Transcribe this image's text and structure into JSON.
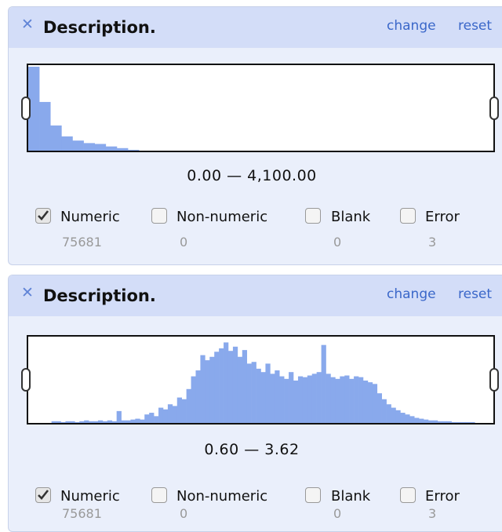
{
  "facets": [
    {
      "title": "Description.",
      "links": [
        "change",
        "reset"
      ],
      "range": "0.00 — 4,100.00",
      "histogram": [
        100,
        58,
        30,
        17,
        12,
        9,
        8,
        5,
        3,
        1,
        0,
        0,
        0,
        0,
        0,
        0,
        0,
        0,
        0,
        0,
        0,
        0,
        0,
        0,
        0,
        0,
        0,
        0,
        0,
        0,
        0,
        0,
        0,
        0,
        0,
        0,
        0,
        0,
        0,
        0,
        0,
        0
      ],
      "choices": [
        {
          "label": "Numeric",
          "count": 75681,
          "checked": true
        },
        {
          "label": "Non-numeric",
          "count": 0,
          "checked": false
        },
        {
          "label": "Blank",
          "count": 0,
          "checked": false
        },
        {
          "label": "Error",
          "count": 3,
          "checked": false
        }
      ]
    },
    {
      "title": "Description.",
      "links": [
        "change",
        "reset"
      ],
      "range": "0.60 — 3.62",
      "histogram": [
        0,
        0,
        0,
        0,
        0,
        2,
        2,
        1,
        2,
        2,
        1,
        2,
        3,
        2,
        2,
        3,
        2,
        3,
        2,
        14,
        3,
        3,
        4,
        5,
        4,
        10,
        12,
        8,
        18,
        16,
        22,
        20,
        30,
        28,
        40,
        55,
        62,
        80,
        74,
        78,
        84,
        88,
        95,
        85,
        90,
        78,
        86,
        70,
        72,
        64,
        60,
        70,
        58,
        62,
        55,
        52,
        60,
        50,
        55,
        54,
        56,
        58,
        60,
        92,
        58,
        54,
        52,
        55,
        56,
        52,
        55,
        54,
        50,
        48,
        46,
        35,
        28,
        22,
        18,
        15,
        12,
        10,
        8,
        6,
        5,
        4,
        3,
        3,
        2,
        2,
        2,
        1,
        1,
        1,
        1,
        1,
        0,
        0,
        0,
        0
      ],
      "choices": [
        {
          "label": "Numeric",
          "count": 75681,
          "checked": true
        },
        {
          "label": "Non-numeric",
          "count": 0,
          "checked": false
        },
        {
          "label": "Blank",
          "count": 0,
          "checked": false
        },
        {
          "label": "Error",
          "count": 3,
          "checked": false
        }
      ]
    }
  ]
}
